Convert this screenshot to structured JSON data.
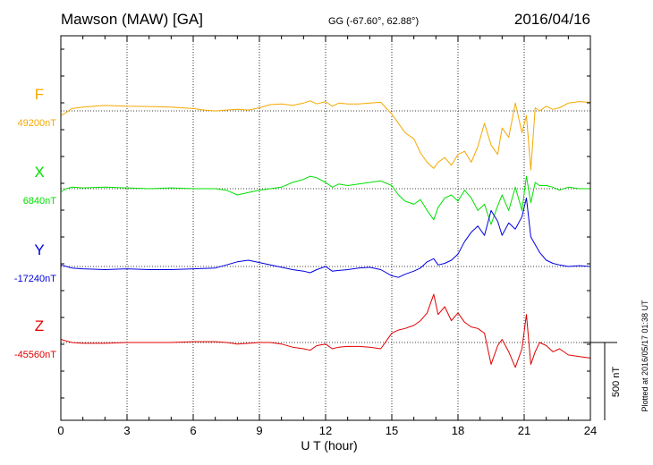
{
  "header": {
    "station": "Mawson (MAW)  [GA]",
    "coords": "GG (-67.60°,  62.88°)",
    "date": "2016/04/16"
  },
  "plotted_note": "Plotted at 2016/05/17 01:38 UT",
  "scale_label": "500 nT",
  "chart_data": {
    "type": "line",
    "xlabel": "U T (hour)",
    "xlim": [
      0,
      24
    ],
    "xticks": [
      "0",
      "3",
      "6",
      "9",
      "12",
      "15",
      "18",
      "21",
      "24"
    ],
    "grid": true,
    "series": [
      {
        "name": "F",
        "baseline_label": "49200nT",
        "baseline": 49200,
        "color": "#f5a800",
        "x": [
          0,
          0.25,
          0.5,
          1,
          1.5,
          2,
          3,
          4,
          5,
          6,
          6.5,
          7,
          7.5,
          8,
          8.5,
          9,
          9.5,
          10,
          10.5,
          11,
          11.3,
          11.6,
          12,
          12.3,
          12.6,
          13,
          13.5,
          14,
          14.5,
          15,
          15.3,
          15.6,
          16,
          16.3,
          16.6,
          16.9,
          17.1,
          17.4,
          17.7,
          18,
          18.3,
          18.6,
          18.9,
          19.2,
          19.5,
          19.8,
          20,
          20.3,
          20.6,
          20.9,
          21.1,
          21.3,
          21.5,
          21.7,
          22,
          22.3,
          22.6,
          23,
          23.5,
          24
        ],
        "y": [
          49170,
          49190,
          49215,
          49225,
          49230,
          49235,
          49230,
          49228,
          49225,
          49215,
          49205,
          49200,
          49205,
          49210,
          49205,
          49220,
          49240,
          49245,
          49235,
          49250,
          49265,
          49245,
          49260,
          49230,
          49250,
          49245,
          49245,
          49250,
          49255,
          49180,
          49120,
          49060,
          49020,
          48930,
          48870,
          48830,
          48870,
          48900,
          48850,
          48920,
          48940,
          48870,
          48970,
          49120,
          48980,
          48920,
          49090,
          49030,
          49250,
          49060,
          49170,
          48820,
          49220,
          49200,
          49230,
          49210,
          49220,
          49250,
          49260,
          49255
        ]
      },
      {
        "name": "X",
        "baseline_label": "6840nT",
        "baseline": 6840,
        "color": "#00e000",
        "x": [
          0,
          0.25,
          0.5,
          1,
          2,
          3,
          4,
          5,
          6,
          7,
          7.5,
          8,
          8.5,
          9,
          9.5,
          10,
          10.5,
          11,
          11.3,
          11.6,
          12,
          12.3,
          12.6,
          13,
          13.5,
          14,
          14.5,
          15,
          15.3,
          15.6,
          16,
          16.3,
          16.6,
          16.9,
          17.1,
          17.4,
          17.7,
          18,
          18.3,
          18.6,
          18.9,
          19.2,
          19.5,
          19.8,
          20,
          20.3,
          20.6,
          20.9,
          21.1,
          21.3,
          21.5,
          21.7,
          22,
          22.3,
          22.6,
          23,
          23.5,
          24
        ],
        "y": [
          6820,
          6840,
          6850,
          6845,
          6850,
          6845,
          6840,
          6845,
          6840,
          6840,
          6830,
          6800,
          6815,
          6830,
          6840,
          6850,
          6880,
          6900,
          6920,
          6910,
          6880,
          6850,
          6870,
          6860,
          6870,
          6880,
          6890,
          6860,
          6800,
          6760,
          6740,
          6770,
          6700,
          6640,
          6720,
          6780,
          6800,
          6760,
          6830,
          6780,
          6700,
          6740,
          6610,
          6730,
          6800,
          6700,
          6850,
          6700,
          6920,
          6750,
          6880,
          6860,
          6860,
          6850,
          6830,
          6850,
          6840,
          6840
        ]
      },
      {
        "name": "Y",
        "baseline_label": "-17240nT",
        "baseline": -17240,
        "color": "#0000e0",
        "x": [
          0,
          0.25,
          0.5,
          1,
          2,
          3,
          4,
          5,
          6,
          7,
          7.5,
          8,
          8.5,
          9,
          9.5,
          10,
          10.5,
          11,
          11.3,
          11.6,
          12,
          12.3,
          12.6,
          13,
          13.5,
          14,
          14.5,
          15,
          15.3,
          15.6,
          16,
          16.3,
          16.6,
          16.9,
          17.1,
          17.4,
          17.7,
          18,
          18.3,
          18.6,
          18.9,
          19.2,
          19.5,
          19.8,
          20,
          20.3,
          20.6,
          20.9,
          21.1,
          21.3,
          21.5,
          21.7,
          22,
          22.3,
          22.6,
          23,
          23.5,
          24
        ],
        "y": [
          -17230,
          -17240,
          -17250,
          -17255,
          -17260,
          -17255,
          -17260,
          -17260,
          -17255,
          -17250,
          -17230,
          -17210,
          -17200,
          -17215,
          -17230,
          -17245,
          -17260,
          -17270,
          -17280,
          -17260,
          -17240,
          -17270,
          -17265,
          -17260,
          -17250,
          -17245,
          -17260,
          -17300,
          -17310,
          -17290,
          -17270,
          -17250,
          -17210,
          -17190,
          -17230,
          -17220,
          -17200,
          -17160,
          -17080,
          -17020,
          -16980,
          -17040,
          -16880,
          -16950,
          -17040,
          -16960,
          -17000,
          -16920,
          -16800,
          -17050,
          -17100,
          -17150,
          -17200,
          -17220,
          -17230,
          -17240,
          -17235,
          -17240
        ]
      },
      {
        "name": "Z",
        "baseline_label": "-45560nT",
        "baseline": -45560,
        "color": "#e00000",
        "x": [
          0,
          0.25,
          0.5,
          1,
          2,
          3,
          4,
          5,
          6,
          7,
          7.5,
          8,
          8.5,
          9,
          9.5,
          10,
          10.5,
          11,
          11.3,
          11.6,
          12,
          12.3,
          12.6,
          13,
          13.5,
          14,
          14.5,
          15,
          15.3,
          15.6,
          16,
          16.3,
          16.6,
          16.9,
          17.1,
          17.4,
          17.7,
          18,
          18.3,
          18.6,
          18.9,
          19.2,
          19.5,
          19.8,
          20,
          20.3,
          20.6,
          20.9,
          21.1,
          21.3,
          21.5,
          21.7,
          22,
          22.3,
          22.6,
          23,
          23.5,
          24
        ],
        "y": [
          -45540,
          -45550,
          -45560,
          -45565,
          -45565,
          -45560,
          -45560,
          -45560,
          -45555,
          -45555,
          -45560,
          -45570,
          -45565,
          -45560,
          -45560,
          -45570,
          -45590,
          -45600,
          -45610,
          -45580,
          -45570,
          -45600,
          -45590,
          -45585,
          -45585,
          -45590,
          -45600,
          -45500,
          -45480,
          -45470,
          -45450,
          -45420,
          -45370,
          -45250,
          -45380,
          -45330,
          -45420,
          -45370,
          -45430,
          -45460,
          -45470,
          -45500,
          -45700,
          -45580,
          -45540,
          -45620,
          -45720,
          -45600,
          -45380,
          -45700,
          -45620,
          -45560,
          -45580,
          -45620,
          -45600,
          -45640,
          -45650,
          -45660
        ]
      }
    ]
  }
}
